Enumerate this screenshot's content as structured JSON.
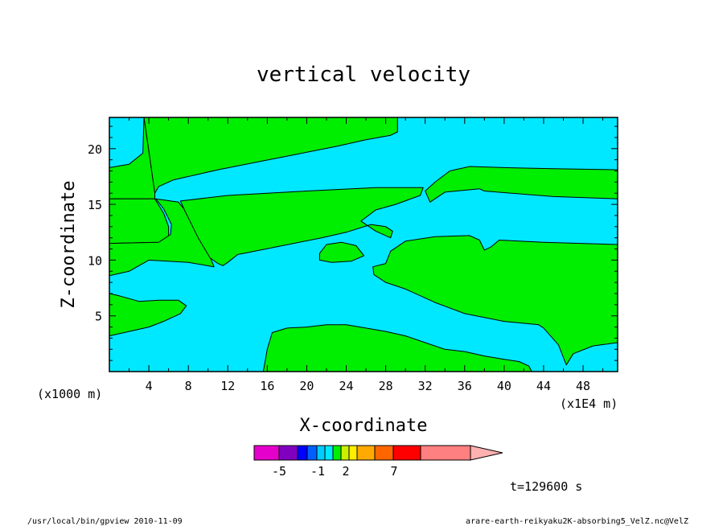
{
  "chart_data": {
    "type": "heatmap",
    "title": "vertical velocity",
    "xlabel": "X-coordinate",
    "ylabel": "Z-coordinate",
    "x_unit_left": "(x1000 m)",
    "x_unit_right": "(x1E4 m)",
    "xlim": [
      0,
      51.5
    ],
    "ylim": [
      0,
      22.8
    ],
    "x_ticks": [
      4,
      8,
      12,
      16,
      20,
      24,
      28,
      32,
      36,
      40,
      44,
      48
    ],
    "y_ticks": [
      5,
      10,
      15,
      20
    ],
    "colors": {
      "negative": "#00e8ff",
      "positive": "#00ee00"
    },
    "regions": [
      {
        "name": "positive-upper-left",
        "level": "positive",
        "polygon": [
          [
            3.5,
            22.8
          ],
          [
            29.2,
            22.8
          ],
          [
            29.2,
            21.5
          ],
          [
            28.5,
            21.2
          ],
          [
            26,
            20.8
          ],
          [
            23,
            20.2
          ],
          [
            19,
            19.5
          ],
          [
            15,
            18.8
          ],
          [
            11,
            18.1
          ],
          [
            6.5,
            17.2
          ],
          [
            5,
            16.6
          ],
          [
            4.6,
            16
          ]
        ]
      },
      {
        "name": "positive-left-top",
        "level": "positive",
        "polygon": [
          [
            0,
            18.3
          ],
          [
            2,
            18.6
          ],
          [
            3.4,
            19.6
          ],
          [
            3.5,
            22.8
          ],
          [
            3.5,
            22.8
          ],
          [
            4.6,
            16
          ],
          [
            4.6,
            15.5
          ],
          [
            0,
            15.5
          ]
        ]
      },
      {
        "name": "positive-left-band",
        "level": "positive",
        "polygon": [
          [
            0,
            15.5
          ],
          [
            4.6,
            15.5
          ],
          [
            5.5,
            14.2
          ],
          [
            6,
            13
          ],
          [
            6,
            12
          ],
          [
            5,
            11.6
          ],
          [
            0,
            11.5
          ]
        ]
      },
      {
        "name": "positive-wedge",
        "level": "positive",
        "polygon": [
          [
            4.7,
            15.5
          ],
          [
            7,
            15.2
          ],
          [
            9,
            13
          ],
          [
            10.6,
            9.4
          ],
          [
            8,
            9.8
          ],
          [
            4,
            10
          ],
          [
            2,
            9
          ],
          [
            0,
            8.6
          ],
          [
            0,
            11.5
          ],
          [
            5,
            11.6
          ],
          [
            6.2,
            12.3
          ],
          [
            6.3,
            13.2
          ],
          [
            5.5,
            14.6
          ]
        ]
      },
      {
        "name": "positive-center-band",
        "level": "positive",
        "polygon": [
          [
            7.2,
            15.3
          ],
          [
            12,
            15.8
          ],
          [
            20,
            16.2
          ],
          [
            27,
            16.5
          ],
          [
            31.8,
            16.5
          ],
          [
            31.5,
            15.8
          ],
          [
            29,
            15
          ],
          [
            27,
            14.5
          ],
          [
            25.5,
            13.5
          ],
          [
            27,
            12.6
          ],
          [
            28.5,
            12
          ],
          [
            28.7,
            12.6
          ],
          [
            28,
            13
          ],
          [
            26.5,
            13.2
          ],
          [
            24,
            12.5
          ],
          [
            21.5,
            12
          ],
          [
            17,
            11.2
          ],
          [
            13,
            10.5
          ],
          [
            12,
            9.8
          ],
          [
            11.5,
            9.5
          ],
          [
            11,
            9.7
          ],
          [
            10.2,
            10.2
          ],
          [
            9,
            12
          ],
          [
            7.6,
            14.5
          ]
        ]
      },
      {
        "name": "positive-left-lower",
        "level": "positive",
        "polygon": [
          [
            0,
            3.2
          ],
          [
            2,
            3.6
          ],
          [
            4,
            4
          ],
          [
            5.5,
            4.5
          ],
          [
            7.2,
            5.2
          ],
          [
            7.8,
            5.9
          ],
          [
            7,
            6.4
          ],
          [
            5,
            6.4
          ],
          [
            3,
            6.3
          ],
          [
            1,
            6.8
          ],
          [
            0,
            7
          ]
        ]
      },
      {
        "name": "positive-blob",
        "level": "positive",
        "polygon": [
          [
            21.3,
            10.6
          ],
          [
            22,
            11.4
          ],
          [
            23.5,
            11.6
          ],
          [
            25,
            11.3
          ],
          [
            25.8,
            10.4
          ],
          [
            24.5,
            9.9
          ],
          [
            22.5,
            9.8
          ],
          [
            21.3,
            10
          ]
        ]
      },
      {
        "name": "positive-upper-right",
        "level": "positive",
        "polygon": [
          [
            32,
            16.2
          ],
          [
            33,
            17
          ],
          [
            34.5,
            18
          ],
          [
            36.5,
            18.4
          ],
          [
            40,
            18.3
          ],
          [
            45,
            18.2
          ],
          [
            51.5,
            18.1
          ],
          [
            51.5,
            15.5
          ],
          [
            45,
            15.7
          ],
          [
            38,
            16.2
          ],
          [
            37.5,
            16.4
          ],
          [
            34,
            16.1
          ],
          [
            32.5,
            15.2
          ]
        ]
      },
      {
        "name": "positive-right-block",
        "level": "positive",
        "polygon": [
          [
            28.5,
            10.8
          ],
          [
            30,
            11.7
          ],
          [
            33,
            12.1
          ],
          [
            36.5,
            12.2
          ],
          [
            37.5,
            11.8
          ],
          [
            38,
            10.9
          ],
          [
            38.7,
            11.2
          ],
          [
            39.5,
            11.8
          ],
          [
            44,
            11.6
          ],
          [
            51.5,
            11.4
          ],
          [
            51.5,
            2.6
          ],
          [
            49,
            2.3
          ],
          [
            47,
            1.6
          ],
          [
            46.3,
            0.6
          ],
          [
            45.5,
            2.4
          ],
          [
            44,
            3.9
          ],
          [
            43.5,
            4.2
          ],
          [
            40,
            4.5
          ],
          [
            36,
            5.2
          ],
          [
            33,
            6.2
          ],
          [
            30,
            7.4
          ],
          [
            28,
            8
          ],
          [
            26.8,
            8.7
          ],
          [
            26.7,
            9.4
          ],
          [
            28,
            9.7
          ]
        ]
      },
      {
        "name": "positive-bottom",
        "level": "positive",
        "polygon": [
          [
            15.6,
            0
          ],
          [
            16,
            2
          ],
          [
            16.5,
            3.5
          ],
          [
            18,
            3.9
          ],
          [
            20,
            4
          ],
          [
            22,
            4.2
          ],
          [
            24,
            4.2
          ],
          [
            26,
            3.9
          ],
          [
            28,
            3.6
          ],
          [
            30,
            3.2
          ],
          [
            32,
            2.6
          ],
          [
            34,
            2
          ],
          [
            36,
            1.8
          ],
          [
            38,
            1.4
          ],
          [
            40,
            1.1
          ],
          [
            41.5,
            0.9
          ],
          [
            42.5,
            0.5
          ],
          [
            42.8,
            0
          ]
        ]
      }
    ],
    "colorbar": {
      "segments": [
        "#e600cc",
        "#8000c0",
        "#0000ff",
        "#0060ff",
        "#00ccff",
        "#00e8ff",
        "#00ee00",
        "#ccee00",
        "#ffee00",
        "#ffaa00",
        "#ff6600",
        "#ff0000",
        "#ff8080",
        "#ffb0b0"
      ],
      "tick_labels": [
        "-5",
        "-1",
        "2",
        "7"
      ]
    }
  },
  "time_label": "t=129600 s",
  "footer_left": "/usr/local/bin/gpview  2010-11-09",
  "footer_right": "arare-earth-reikyaku2K-absorbing5_VelZ.nc@VelZ"
}
